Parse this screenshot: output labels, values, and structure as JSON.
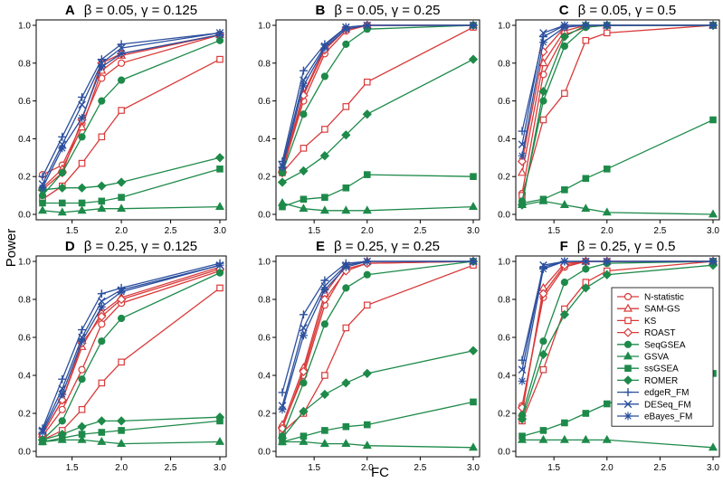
{
  "figure": {
    "ylabel": "Power",
    "xlabel": "FC"
  },
  "legend": {
    "placement": "bottom-right of panel F",
    "entries": [
      {
        "name": "N-statistic",
        "color": "#d93a3a",
        "marker": "circle-open"
      },
      {
        "name": "SAM-GS",
        "color": "#d93a3a",
        "marker": "triangle-open"
      },
      {
        "name": "KS",
        "color": "#d93a3a",
        "marker": "square-open"
      },
      {
        "name": "ROAST",
        "color": "#d93a3a",
        "marker": "diamond-open"
      },
      {
        "name": "SeqGSEA",
        "color": "#1e8a4a",
        "marker": "circle-filled"
      },
      {
        "name": "GSVA",
        "color": "#1e8a4a",
        "marker": "triangle-filled"
      },
      {
        "name": "ssGSEA",
        "color": "#1e8a4a",
        "marker": "square-filled"
      },
      {
        "name": "ROMER",
        "color": "#1e8a4a",
        "marker": "diamond-filled"
      },
      {
        "name": "edgeR_FM",
        "color": "#2b4f9e",
        "marker": "plus"
      },
      {
        "name": "DESeq_FM",
        "color": "#2b4f9e",
        "marker": "cross"
      },
      {
        "name": "eBayes_FM",
        "color": "#2b4f9e",
        "marker": "asterisk"
      }
    ]
  },
  "chart_data": [
    {
      "type": "line",
      "letter": "A",
      "title": "β = 0.05, γ = 0.125",
      "xlabel": "",
      "ylabel": "",
      "xlim": [
        1.2,
        3.0
      ],
      "ylim": [
        0,
        1
      ],
      "xticks": [
        "1.5",
        "2.0",
        "2.5",
        "3.0"
      ],
      "yticks": [
        "0.0",
        "0.2",
        "0.4",
        "0.6",
        "0.8",
        "1.0"
      ],
      "x": [
        1.2,
        1.4,
        1.6,
        1.8,
        2.0,
        3.0
      ],
      "series": [
        {
          "name": "N-statistic",
          "values": [
            0.21,
            0.26,
            0.48,
            0.72,
            0.8,
            0.95
          ]
        },
        {
          "name": "SAM-GS",
          "values": [
            0.14,
            0.24,
            0.46,
            0.76,
            0.84,
            0.95
          ]
        },
        {
          "name": "KS",
          "values": [
            0.08,
            0.15,
            0.27,
            0.41,
            0.55,
            0.82
          ]
        },
        {
          "name": "ROAST",
          "values": [
            0.13,
            0.22,
            0.5,
            0.8,
            0.85,
            0.95
          ]
        },
        {
          "name": "SeqGSEA",
          "values": [
            0.1,
            0.22,
            0.41,
            0.6,
            0.71,
            0.92
          ]
        },
        {
          "name": "GSVA",
          "values": [
            0.02,
            0.01,
            0.02,
            0.03,
            0.03,
            0.04
          ]
        },
        {
          "name": "ssGSEA",
          "values": [
            0.06,
            0.06,
            0.06,
            0.07,
            0.09,
            0.24
          ]
        },
        {
          "name": "ROMER",
          "values": [
            0.13,
            0.14,
            0.14,
            0.15,
            0.17,
            0.3
          ]
        },
        {
          "name": "edgeR_FM",
          "values": [
            0.2,
            0.41,
            0.62,
            0.82,
            0.9,
            0.96
          ]
        },
        {
          "name": "DESeq_FM",
          "values": [
            0.16,
            0.37,
            0.58,
            0.8,
            0.88,
            0.96
          ]
        },
        {
          "name": "eBayes_FM",
          "values": [
            0.14,
            0.35,
            0.51,
            0.78,
            0.85,
            0.95
          ]
        }
      ]
    },
    {
      "type": "line",
      "letter": "B",
      "title": "β = 0.05, γ = 0.25",
      "xlabel": "",
      "ylabel": "",
      "xlim": [
        1.2,
        3.0
      ],
      "ylim": [
        0,
        1
      ],
      "xticks": [
        "1.5",
        "2.0",
        "2.5",
        "3.0"
      ],
      "yticks": [
        "0.0",
        "0.2",
        "0.4",
        "0.6",
        "0.8",
        "1.0"
      ],
      "x": [
        1.2,
        1.4,
        1.6,
        1.8,
        2.0,
        3.0
      ],
      "series": [
        {
          "name": "N-statistic",
          "values": [
            0.23,
            0.6,
            0.85,
            0.97,
            1.0,
            1.0
          ]
        },
        {
          "name": "SAM-GS",
          "values": [
            0.24,
            0.64,
            0.88,
            0.98,
            1.0,
            1.0
          ]
        },
        {
          "name": "KS",
          "values": [
            0.22,
            0.35,
            0.45,
            0.57,
            0.7,
            0.99
          ]
        },
        {
          "name": "ROAST",
          "values": [
            0.22,
            0.63,
            0.87,
            0.98,
            1.0,
            1.0
          ]
        },
        {
          "name": "SeqGSEA",
          "values": [
            0.22,
            0.53,
            0.73,
            0.9,
            0.98,
            1.0
          ]
        },
        {
          "name": "GSVA",
          "values": [
            0.06,
            0.03,
            0.02,
            0.02,
            0.02,
            0.04
          ]
        },
        {
          "name": "ssGSEA",
          "values": [
            0.04,
            0.08,
            0.09,
            0.14,
            0.21,
            0.2
          ]
        },
        {
          "name": "ROMER",
          "values": [
            0.17,
            0.23,
            0.31,
            0.42,
            0.53,
            0.82
          ]
        },
        {
          "name": "edgeR_FM",
          "values": [
            0.28,
            0.76,
            0.9,
            0.99,
            1.0,
            1.0
          ]
        },
        {
          "name": "DESeq_FM",
          "values": [
            0.26,
            0.71,
            0.89,
            0.99,
            1.0,
            1.0
          ]
        },
        {
          "name": "eBayes_FM",
          "values": [
            0.25,
            0.68,
            0.88,
            0.98,
            1.0,
            1.0
          ]
        }
      ]
    },
    {
      "type": "line",
      "letter": "C",
      "title": "β = 0.05, γ = 0.5",
      "xlabel": "",
      "ylabel": "",
      "xlim": [
        1.2,
        3.0
      ],
      "ylim": [
        0,
        1
      ],
      "xticks": [
        "1.5",
        "2.0",
        "2.5",
        "3.0"
      ],
      "yticks": [
        "0.0",
        "0.2",
        "0.4",
        "0.6",
        "0.8",
        "1.0"
      ],
      "x": [
        1.2,
        1.4,
        1.6,
        1.8,
        2.0,
        3.0
      ],
      "series": [
        {
          "name": "N-statistic",
          "values": [
            0.11,
            0.74,
            0.95,
            0.99,
            1.0,
            1.0
          ]
        },
        {
          "name": "SAM-GS",
          "values": [
            0.22,
            0.8,
            0.97,
            1.0,
            1.0,
            1.0
          ]
        },
        {
          "name": "KS",
          "values": [
            0.1,
            0.5,
            0.64,
            0.92,
            0.96,
            1.0
          ]
        },
        {
          "name": "ROAST",
          "values": [
            0.28,
            0.86,
            0.99,
            1.0,
            1.0,
            1.0
          ]
        },
        {
          "name": "SeqGSEA",
          "values": [
            0.07,
            0.6,
            0.89,
            0.99,
            1.0,
            1.0
          ]
        },
        {
          "name": "GSVA",
          "values": [
            0.05,
            0.07,
            0.05,
            0.03,
            0.01,
            0.0
          ]
        },
        {
          "name": "ssGSEA",
          "values": [
            0.06,
            0.08,
            0.13,
            0.19,
            0.24,
            0.5
          ]
        },
        {
          "name": "ROMER",
          "values": [
            0.05,
            0.65,
            0.94,
            1.0,
            1.0,
            1.0
          ]
        },
        {
          "name": "edgeR_FM",
          "values": [
            0.44,
            0.94,
            1.0,
            1.0,
            1.0,
            1.0
          ]
        },
        {
          "name": "DESeq_FM",
          "values": [
            0.37,
            0.96,
            1.0,
            1.0,
            1.0,
            1.0
          ]
        },
        {
          "name": "eBayes_FM",
          "values": [
            0.31,
            0.91,
            0.99,
            1.0,
            1.0,
            1.0
          ]
        }
      ]
    },
    {
      "type": "line",
      "letter": "D",
      "title": "β = 0.25, γ = 0.125",
      "xlabel": "",
      "ylabel": "",
      "xlim": [
        1.2,
        3.0
      ],
      "ylim": [
        0,
        1
      ],
      "xticks": [
        "1.5",
        "2.0",
        "2.5",
        "3.0"
      ],
      "yticks": [
        "0.0",
        "0.2",
        "0.4",
        "0.6",
        "0.8",
        "1.0"
      ],
      "x": [
        1.2,
        1.4,
        1.6,
        1.8,
        2.0,
        3.0
      ],
      "series": [
        {
          "name": "N-statistic",
          "values": [
            0.08,
            0.22,
            0.43,
            0.67,
            0.78,
            0.95
          ]
        },
        {
          "name": "SAM-GS",
          "values": [
            0.09,
            0.27,
            0.55,
            0.73,
            0.81,
            0.97
          ]
        },
        {
          "name": "KS",
          "values": [
            0.06,
            0.11,
            0.22,
            0.36,
            0.47,
            0.86
          ]
        },
        {
          "name": "ROAST",
          "values": [
            0.09,
            0.27,
            0.57,
            0.71,
            0.8,
            0.96
          ]
        },
        {
          "name": "SeqGSEA",
          "values": [
            0.06,
            0.16,
            0.38,
            0.58,
            0.7,
            0.94
          ]
        },
        {
          "name": "GSVA",
          "values": [
            0.05,
            0.06,
            0.06,
            0.05,
            0.04,
            0.05
          ]
        },
        {
          "name": "ssGSEA",
          "values": [
            0.05,
            0.07,
            0.09,
            0.1,
            0.11,
            0.16
          ]
        },
        {
          "name": "ROMER",
          "values": [
            0.06,
            0.09,
            0.13,
            0.16,
            0.16,
            0.18
          ]
        },
        {
          "name": "edgeR_FM",
          "values": [
            0.12,
            0.38,
            0.64,
            0.83,
            0.86,
            0.99
          ]
        },
        {
          "name": "DESeq_FM",
          "values": [
            0.11,
            0.33,
            0.6,
            0.79,
            0.85,
            0.98
          ]
        },
        {
          "name": "eBayes_FM",
          "values": [
            0.1,
            0.3,
            0.58,
            0.76,
            0.84,
            0.98
          ]
        }
      ]
    },
    {
      "type": "line",
      "letter": "E",
      "title": "β = 0.25, γ = 0.25",
      "xlabel": "",
      "ylabel": "",
      "xlim": [
        1.2,
        3.0
      ],
      "ylim": [
        0,
        1
      ],
      "xticks": [
        "1.5",
        "2.0",
        "2.5",
        "3.0"
      ],
      "yticks": [
        "0.0",
        "0.2",
        "0.4",
        "0.6",
        "0.8",
        "1.0"
      ],
      "x": [
        1.2,
        1.4,
        1.6,
        1.8,
        2.0,
        3.0
      ],
      "series": [
        {
          "name": "N-statistic",
          "values": [
            0.13,
            0.4,
            0.77,
            0.96,
            0.99,
            1.0
          ]
        },
        {
          "name": "SAM-GS",
          "values": [
            0.14,
            0.44,
            0.83,
            0.98,
            1.0,
            1.0
          ]
        },
        {
          "name": "KS",
          "values": [
            0.1,
            0.2,
            0.4,
            0.65,
            0.77,
            0.98
          ]
        },
        {
          "name": "ROAST",
          "values": [
            0.12,
            0.42,
            0.8,
            0.95,
            0.99,
            1.0
          ]
        },
        {
          "name": "SeqGSEA",
          "values": [
            0.08,
            0.36,
            0.67,
            0.86,
            0.93,
            1.0
          ]
        },
        {
          "name": "GSVA",
          "values": [
            0.05,
            0.05,
            0.04,
            0.04,
            0.03,
            0.02
          ]
        },
        {
          "name": "ssGSEA",
          "values": [
            0.05,
            0.08,
            0.11,
            0.13,
            0.14,
            0.26
          ]
        },
        {
          "name": "ROMER",
          "values": [
            0.07,
            0.21,
            0.3,
            0.36,
            0.41,
            0.53
          ]
        },
        {
          "name": "edgeR_FM",
          "values": [
            0.31,
            0.72,
            0.9,
            0.99,
            1.0,
            1.0
          ]
        },
        {
          "name": "DESeq_FM",
          "values": [
            0.24,
            0.65,
            0.87,
            0.98,
            1.0,
            1.0
          ]
        },
        {
          "name": "eBayes_FM",
          "values": [
            0.22,
            0.61,
            0.85,
            0.97,
            1.0,
            1.0
          ]
        }
      ]
    },
    {
      "type": "line",
      "letter": "F",
      "title": "β = 0.25, γ = 0.5",
      "xlabel": "",
      "ylabel": "",
      "xlim": [
        1.2,
        3.0
      ],
      "ylim": [
        0,
        1
      ],
      "xticks": [
        "1.5",
        "2.0",
        "2.5",
        "3.0"
      ],
      "yticks": [
        "0.0",
        "0.2",
        "0.4",
        "0.6",
        "0.8",
        "1.0"
      ],
      "x": [
        1.2,
        1.4,
        1.6,
        1.8,
        2.0,
        3.0
      ],
      "series": [
        {
          "name": "N-statistic",
          "values": [
            0.24,
            0.81,
            0.97,
            1.0,
            1.0,
            1.0
          ]
        },
        {
          "name": "SAM-GS",
          "values": [
            0.2,
            0.86,
            0.99,
            1.0,
            1.0,
            1.0
          ]
        },
        {
          "name": "KS",
          "values": [
            0.16,
            0.43,
            0.75,
            0.89,
            0.95,
            1.0
          ]
        },
        {
          "name": "ROAST",
          "values": [
            0.23,
            0.83,
            0.98,
            1.0,
            1.0,
            1.0
          ]
        },
        {
          "name": "SeqGSEA",
          "values": [
            0.19,
            0.58,
            0.89,
            0.96,
            0.99,
            1.0
          ]
        },
        {
          "name": "GSVA",
          "values": [
            0.06,
            0.06,
            0.06,
            0.06,
            0.06,
            0.02
          ]
        },
        {
          "name": "ssGSEA",
          "values": [
            0.08,
            0.11,
            0.15,
            0.2,
            0.25,
            0.41
          ]
        },
        {
          "name": "ROMER",
          "values": [
            0.17,
            0.51,
            0.72,
            0.86,
            0.93,
            0.98
          ]
        },
        {
          "name": "edgeR_FM",
          "values": [
            0.48,
            0.97,
            1.0,
            1.0,
            1.0,
            1.0
          ]
        },
        {
          "name": "DESeq_FM",
          "values": [
            0.43,
            0.98,
            1.0,
            1.0,
            1.0,
            1.0
          ]
        },
        {
          "name": "eBayes_FM",
          "values": [
            0.37,
            0.96,
            1.0,
            1.0,
            1.0,
            1.0
          ]
        }
      ]
    }
  ]
}
